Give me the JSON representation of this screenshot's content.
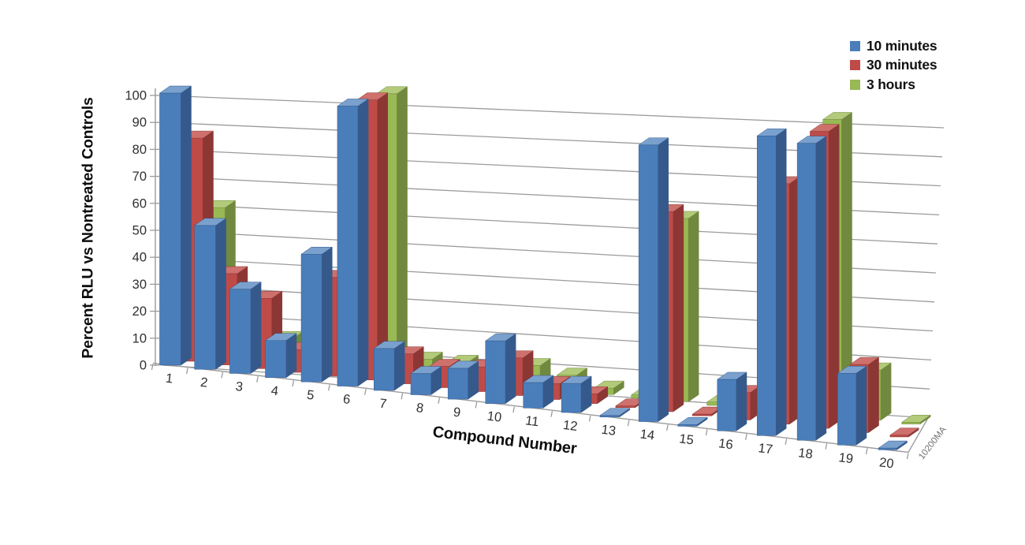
{
  "figure": {
    "background": "#ffffff",
    "part_number": "10200MA"
  },
  "chart_data": {
    "type": "bar",
    "projection": "3d-perspective",
    "title": "",
    "xlabel": "Compound Number",
    "ylabel": "Percent RLU vs Nontreated Controls",
    "ylim": [
      0,
      100
    ],
    "ytick_step": 10,
    "yticks": [
      0,
      10,
      20,
      30,
      40,
      50,
      60,
      70,
      80,
      90,
      100
    ],
    "grid": true,
    "legend_position": "top-right",
    "categories": [
      "1",
      "2",
      "3",
      "4",
      "5",
      "6",
      "7",
      "8",
      "9",
      "10",
      "11",
      "12",
      "13",
      "14",
      "15",
      "16",
      "17",
      "18",
      "19",
      "20"
    ],
    "series": [
      {
        "name": "10 minutes",
        "colors": {
          "front": "#4A7EBB",
          "side": "#36598B",
          "top": "#7AA1CE"
        },
        "values": [
          100,
          52,
          30,
          13,
          44,
          95,
          14,
          7,
          10,
          20,
          8,
          9,
          0.5,
          83,
          0.5,
          15,
          86,
          84,
          20,
          0.5
        ]
      },
      {
        "name": "30 minutes",
        "colors": {
          "front": "#BE4B48",
          "side": "#8C3734",
          "top": "#CE706C"
        },
        "values": [
          82,
          33,
          25,
          8,
          34,
          95,
          10,
          7,
          8,
          12,
          5,
          3,
          0.5,
          60,
          0.5,
          8,
          69,
          84,
          19,
          0.5
        ]
      },
      {
        "name": "3 hours",
        "colors": {
          "front": "#98B954",
          "side": "#70893E",
          "top": "#B2CA79"
        },
        "values": [
          55,
          22,
          9,
          4,
          28,
          95,
          6,
          6,
          5,
          7,
          5,
          2,
          1,
          55,
          1,
          4,
          26,
          84,
          14,
          0.5
        ]
      }
    ],
    "axis_colors": {
      "grid": "#9B9B9B",
      "axis": "#9B9B9B",
      "tick_text": "#303030"
    }
  }
}
